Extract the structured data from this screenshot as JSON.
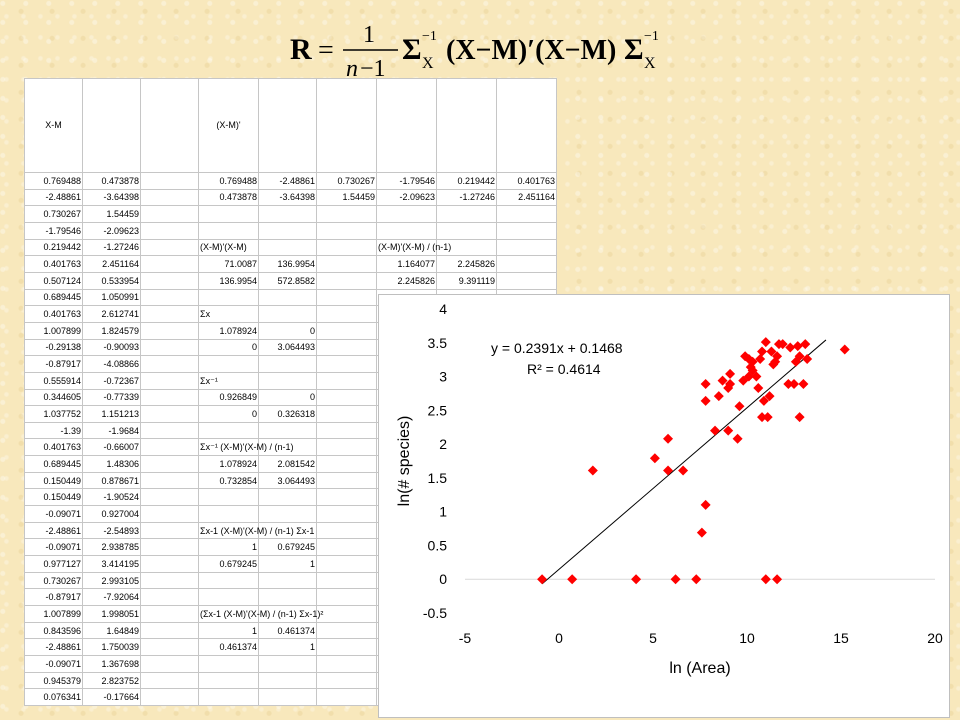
{
  "formula": {
    "lhs": "R",
    "eq": "=",
    "num": "1",
    "den_n": "n",
    "den_rest": "−1",
    "sigma": "Σ",
    "sub": "X",
    "sup": "−1",
    "middle": "(X−M)′(X−M)"
  },
  "sheet": {
    "col_header_1": "X-M",
    "col_header_2": "(X-M)'",
    "rows": [
      [
        "0.769488",
        "0.473878",
        "",
        "0.769488",
        "-2.48861",
        "0.730267",
        "-1.79546",
        "0.219442",
        "0.401763"
      ],
      [
        "-2.48861",
        "-3.64398",
        "",
        "0.473878",
        "-3.64398",
        "1.54459",
        "-2.09623",
        "-1.27246",
        "2.451164"
      ],
      [
        "0.730267",
        "1.54459",
        "",
        "",
        "",
        "",
        "",
        "",
        ""
      ],
      [
        "-1.79546",
        "-2.09623",
        "",
        "",
        "",
        "",
        "",
        "",
        ""
      ],
      [
        "0.219442",
        "-1.27246",
        "",
        "(X-M)'(X-M)",
        "",
        "",
        "(X-M)'(X-M) / (n-1)",
        "",
        ""
      ],
      [
        "0.401763",
        "2.451164",
        "",
        "71.0087",
        "136.9954",
        "",
        "1.164077",
        "2.245826",
        ""
      ],
      [
        "0.507124",
        "0.533954",
        "",
        "136.9954",
        "572.8582",
        "",
        "2.245826",
        "9.391119",
        ""
      ],
      [
        "0.689445",
        "1.050991",
        "",
        "",
        "",
        "",
        "",
        "",
        ""
      ],
      [
        "0.401763",
        "2.612741",
        "",
        "Σx",
        "",
        "",
        "",
        "",
        ""
      ],
      [
        "1.007899",
        "1.824579",
        "",
        "1.078924",
        "0",
        "",
        "",
        "",
        ""
      ],
      [
        "-0.29138",
        "-0.90093",
        "",
        "0",
        "3.064493",
        "",
        "",
        "",
        ""
      ],
      [
        "-0.87917",
        "-4.08866",
        "",
        "",
        "",
        "",
        "",
        "",
        ""
      ],
      [
        "0.555914",
        "-0.72367",
        "",
        "Σx⁻¹",
        "",
        "",
        "",
        "",
        ""
      ],
      [
        "0.344605",
        "-0.77339",
        "",
        "0.926849",
        "0",
        "",
        "",
        "",
        ""
      ],
      [
        "1.037752",
        "1.151213",
        "",
        "0",
        "0.326318",
        "",
        "",
        "",
        ""
      ],
      [
        "-1.39",
        "-1.9684",
        "",
        "",
        "",
        "",
        "",
        "",
        ""
      ],
      [
        "0.401763",
        "-0.66007",
        "",
        "Σx⁻¹ (X-M)'(X-M) / (n-1)",
        "",
        "",
        "",
        "",
        ""
      ],
      [
        "0.689445",
        "1.48306",
        "",
        "1.078924",
        "2.081542",
        "",
        "",
        "",
        ""
      ],
      [
        "0.150449",
        "0.878671",
        "",
        "0.732854",
        "3.064493",
        "",
        "",
        "",
        ""
      ],
      [
        "0.150449",
        "-1.90524",
        "",
        "",
        "",
        "",
        "",
        "",
        ""
      ],
      [
        "-0.09071",
        "0.927004",
        "",
        "",
        "",
        "",
        "",
        "",
        ""
      ],
      [
        "-2.48861",
        "-2.54893",
        "",
        "Σx-1 (X-M)'(X-M) / (n-1) Σx-1",
        "",
        "",
        "",
        "",
        ""
      ],
      [
        "-0.09071",
        "2.938785",
        "",
        "1",
        "0.679245",
        "",
        "",
        "",
        ""
      ],
      [
        "0.977127",
        "3.414195",
        "",
        "0.679245",
        "1",
        "",
        "",
        "",
        ""
      ],
      [
        "0.730267",
        "2.993105",
        "",
        "",
        "",
        "",
        "",
        "",
        ""
      ],
      [
        "-0.87917",
        "-7.92064",
        "",
        "",
        "",
        "",
        "",
        "",
        ""
      ],
      [
        "1.007899",
        "1.998051",
        "",
        "(Σx-1 (X-M)'(X-M) / (n-1) Σx-1)²",
        "",
        "",
        "",
        "",
        ""
      ],
      [
        "0.843596",
        "1.64849",
        "",
        "1",
        "0.461374",
        "",
        "",
        "",
        ""
      ],
      [
        "-2.48861",
        "1.750039",
        "",
        "0.461374",
        "1",
        "",
        "",
        "",
        ""
      ],
      [
        "-0.09071",
        "1.367698",
        "",
        "",
        "",
        "",
        "",
        "",
        ""
      ],
      [
        "0.945379",
        "2.823752",
        "",
        "",
        "",
        "",
        "",
        "",
        ""
      ],
      [
        "0.076341",
        "-0.17664",
        "",
        "",
        "",
        "",
        "",
        "",
        ""
      ]
    ]
  },
  "chart_data": {
    "type": "scatter",
    "xlabel": "ln (Area)",
    "ylabel": "ln(# species)",
    "xlim": [
      -5,
      20
    ],
    "ylim": [
      -0.5,
      4
    ],
    "xticks": [
      "-5",
      "0",
      "5",
      "10",
      "15",
      "20"
    ],
    "yticks": [
      "-0.5",
      "0",
      "0.5",
      "1",
      "1.5",
      "2",
      "2.5",
      "3",
      "3.5",
      "4"
    ],
    "trend_equation": "y = 0.2391x + 0.1468",
    "r_squared": "R² = 0.4614",
    "trend": {
      "slope": 0.2391,
      "intercept": 0.1468,
      "x_from": -0.9,
      "x_to": 14.2
    },
    "marker_color": "#ff0000",
    "line_color": "#000000",
    "points": [
      [
        -0.9,
        0
      ],
      [
        0.7,
        0
      ],
      [
        4.1,
        0
      ],
      [
        6.2,
        0
      ],
      [
        7.3,
        0
      ],
      [
        11.0,
        0
      ],
      [
        11.6,
        0
      ],
      [
        1.8,
        1.61
      ],
      [
        5.1,
        1.79
      ],
      [
        5.8,
        1.61
      ],
      [
        6.6,
        1.61
      ],
      [
        5.8,
        2.08
      ],
      [
        7.6,
        0.69
      ],
      [
        7.8,
        1.1
      ],
      [
        7.8,
        2.64
      ],
      [
        7.8,
        2.89
      ],
      [
        8.3,
        2.2
      ],
      [
        8.5,
        2.71
      ],
      [
        8.7,
        2.94
      ],
      [
        9.0,
        2.2
      ],
      [
        9.0,
        2.83
      ],
      [
        9.1,
        2.89
      ],
      [
        9.1,
        3.04
      ],
      [
        9.5,
        2.08
      ],
      [
        9.6,
        2.56
      ],
      [
        9.8,
        2.94
      ],
      [
        9.9,
        3.3
      ],
      [
        10.1,
        3.0
      ],
      [
        10.1,
        3.26
      ],
      [
        10.2,
        3.14
      ],
      [
        10.3,
        3.09
      ],
      [
        10.3,
        3.22
      ],
      [
        10.5,
        3.0
      ],
      [
        10.6,
        2.83
      ],
      [
        10.7,
        3.26
      ],
      [
        10.8,
        3.37
      ],
      [
        10.8,
        2.4
      ],
      [
        10.9,
        2.64
      ],
      [
        11.0,
        3.51
      ],
      [
        11.1,
        2.4
      ],
      [
        11.2,
        2.71
      ],
      [
        11.3,
        3.37
      ],
      [
        11.4,
        3.18
      ],
      [
        11.5,
        3.22
      ],
      [
        11.6,
        3.3
      ],
      [
        11.7,
        3.48
      ],
      [
        11.9,
        3.48
      ],
      [
        12.2,
        2.89
      ],
      [
        12.3,
        3.43
      ],
      [
        12.5,
        2.89
      ],
      [
        12.6,
        3.22
      ],
      [
        12.7,
        3.45
      ],
      [
        12.8,
        3.3
      ],
      [
        12.8,
        2.4
      ],
      [
        13.0,
        2.89
      ],
      [
        13.1,
        3.48
      ],
      [
        13.2,
        3.26
      ],
      [
        15.2,
        3.4
      ]
    ]
  }
}
